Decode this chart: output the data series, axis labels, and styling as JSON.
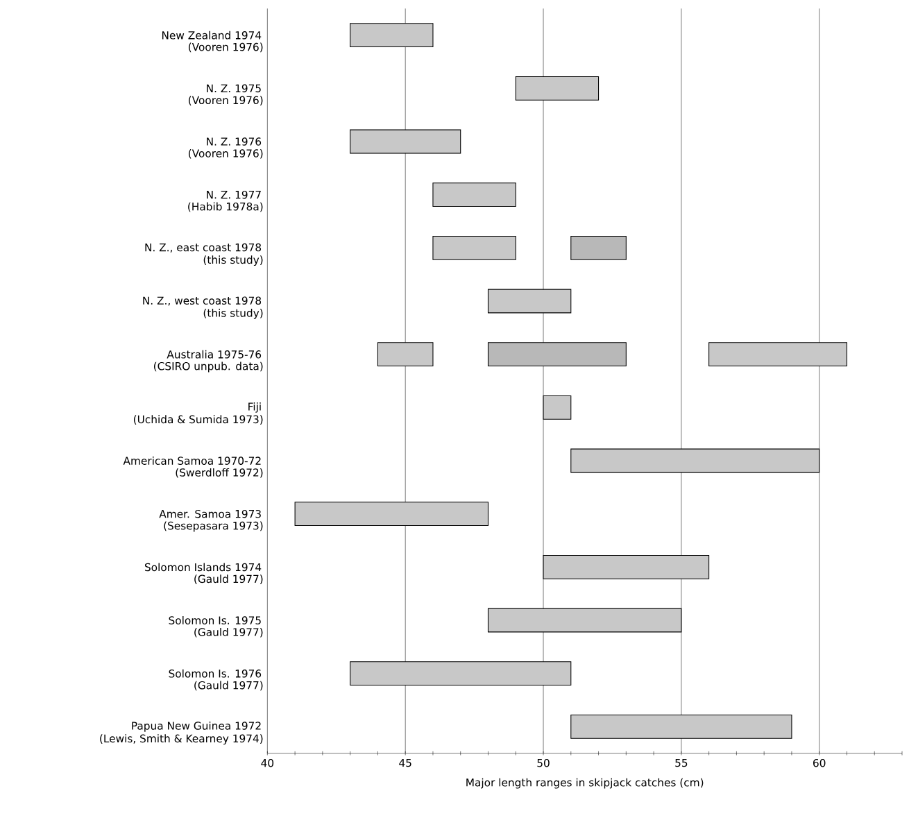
{
  "chart_data": {
    "type": "bar",
    "orientation": "horizontal",
    "xlabel": "Major length ranges in skipjack catches (cm)",
    "categories": [
      "New Zealand 1974",
      "N. Z. 1975",
      "N. Z. 1976",
      "N. Z. 1977",
      "N. Z., east coast 1978",
      "N. Z., west coast 1978",
      "Australia 1975-76",
      "Fiji",
      "American Samoa 1970-72",
      "Amer. Samoa 1973",
      "Solomon Islands 1974",
      "Solomon Is. 1975",
      "Solomon Is. 1976",
      "Papua New Guinea 1972"
    ],
    "annotations": [
      "(Vooren 1976)",
      "(Vooren 1976)",
      "(Vooren 1976)",
      "(Habib 1978a)",
      "(this study)",
      "(this study)",
      "(CSIRO unpub. data)",
      "(Uchida & Sumida 1973)",
      "(Swerdloff 1972)",
      "(Sesepasara 1973)",
      "(Gauld 1977)",
      "(Gauld 1977)",
      "(Gauld 1977)",
      "(Lewis, Smith & Kearney 1974)"
    ],
    "series": [
      {
        "color": "#c8c8c8",
        "base": [
          43,
          49,
          43,
          46,
          46,
          48,
          44,
          50,
          51,
          41,
          50,
          48,
          43,
          51
        ],
        "values": [
          3,
          3,
          4,
          3,
          3,
          3,
          2,
          1,
          9,
          7,
          6,
          7,
          8,
          8
        ]
      },
      {
        "color": "#b8b8b8",
        "base": [
          null,
          null,
          null,
          null,
          51,
          null,
          48,
          null,
          null,
          null,
          null,
          null,
          null,
          null
        ],
        "values": [
          null,
          null,
          null,
          null,
          2,
          null,
          5,
          null,
          null,
          null,
          null,
          null,
          null,
          null
        ]
      },
      {
        "color": "#c8c8c8",
        "base": [
          null,
          null,
          null,
          null,
          null,
          null,
          56,
          null,
          null,
          null,
          null,
          null,
          null,
          null
        ],
        "values": [
          null,
          null,
          null,
          null,
          null,
          null,
          5,
          null,
          null,
          null,
          null,
          null,
          null,
          null
        ]
      }
    ],
    "xlim": [
      40,
      63
    ],
    "xticks": [
      40,
      {
        "value": 41,
        "label": null
      },
      {
        "value": 42,
        "label": null
      },
      {
        "value": 43,
        "label": null
      },
      {
        "value": 44,
        "label": null
      },
      45,
      {
        "value": 46,
        "label": null
      },
      {
        "value": 47,
        "label": null
      },
      {
        "value": 48,
        "label": null
      },
      {
        "value": 49,
        "label": null
      },
      50,
      {
        "value": 51,
        "label": null
      },
      {
        "value": 52,
        "label": null
      },
      {
        "value": 53,
        "label": null
      },
      {
        "value": 54,
        "label": null
      },
      55,
      {
        "value": 56,
        "label": null
      },
      {
        "value": 57,
        "label": null
      },
      {
        "value": 58,
        "label": null
      },
      {
        "value": 59,
        "label": null
      },
      60,
      {
        "value": 61,
        "label": null
      },
      {
        "value": 62,
        "label": null
      },
      {
        "value": 63,
        "label": null
      }
    ],
    "grid": "x"
  }
}
